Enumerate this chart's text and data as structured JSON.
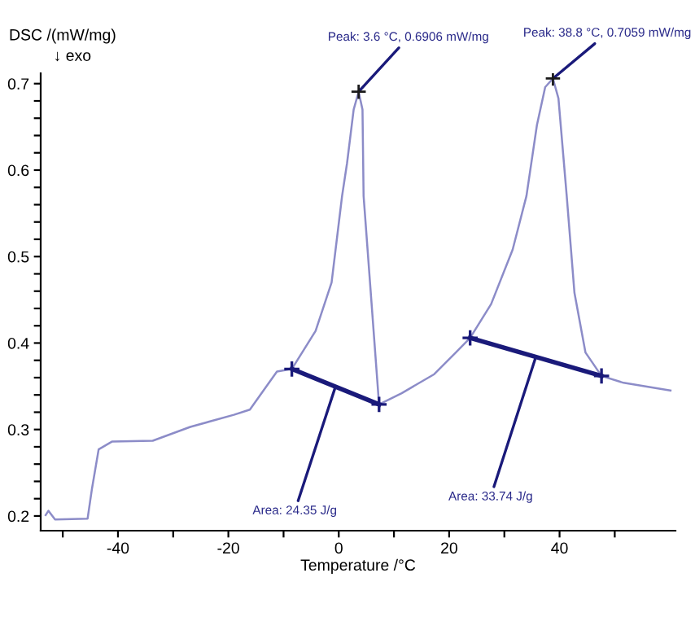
{
  "chart_data": {
    "type": "line",
    "xlabel": "Temperature /°C",
    "ylabel": "DSC /(mW/mg)",
    "xlim": [
      -54,
      61
    ],
    "ylim": [
      0.183,
      0.712
    ],
    "xticks": [
      {
        "value": -50,
        "label": null
      },
      -40,
      {
        "value": -30,
        "label": null
      },
      -20,
      {
        "value": -10,
        "label": null
      },
      0,
      {
        "value": 10,
        "label": null
      },
      20,
      {
        "value": 30,
        "label": null
      },
      40,
      {
        "value": 50,
        "label": null
      }
    ],
    "yticks": [
      0.2,
      {
        "value": 0.22,
        "label": null
      },
      {
        "value": 0.24,
        "label": null
      },
      {
        "value": 0.26,
        "label": null
      },
      {
        "value": 0.28,
        "label": null
      },
      0.3,
      {
        "value": 0.32,
        "label": null
      },
      {
        "value": 0.34,
        "label": null
      },
      {
        "value": 0.36,
        "label": null
      },
      {
        "value": 0.38,
        "label": null
      },
      0.4,
      {
        "value": 0.42,
        "label": null
      },
      {
        "value": 0.44,
        "label": null
      },
      {
        "value": 0.46,
        "label": null
      },
      {
        "value": 0.48,
        "label": null
      },
      0.5,
      {
        "value": 0.52,
        "label": null
      },
      {
        "value": 0.54,
        "label": null
      },
      {
        "value": 0.56,
        "label": null
      },
      {
        "value": 0.58,
        "label": null
      },
      0.6,
      {
        "value": 0.62,
        "label": null
      },
      {
        "value": 0.64,
        "label": null
      },
      {
        "value": 0.66,
        "label": null
      },
      {
        "value": 0.68,
        "label": null
      },
      0.7
    ],
    "grid": false,
    "legend": false,
    "line_style": "solid",
    "series": [
      {
        "color": "#8c8cc8",
        "marker": "none",
        "x": [
          -53.1,
          -52.6,
          -51.4,
          -45.5,
          -44.7,
          -43.5,
          -41.1,
          -33.7,
          -26.9,
          -19.0,
          -16.1,
          -11.2,
          -8.5,
          -4.2,
          -1.3,
          0.6,
          1.5,
          2.7,
          3.6,
          4.3,
          4.5,
          7.3,
          11.4,
          17.3,
          21.2,
          23.8,
          27.6,
          31.5,
          34.0,
          35.9,
          37.4,
          38.8,
          39.8,
          41.3,
          42.7,
          44.7,
          47.6,
          51.6,
          60.1
        ],
        "values": [
          0.201,
          0.206,
          0.196,
          0.197,
          0.232,
          0.277,
          0.286,
          0.287,
          0.303,
          0.317,
          0.323,
          0.367,
          0.37,
          0.414,
          0.47,
          0.57,
          0.608,
          0.67,
          0.6906,
          0.67,
          0.57,
          0.329,
          0.342,
          0.364,
          0.389,
          0.406,
          0.445,
          0.508,
          0.57,
          0.652,
          0.696,
          0.7059,
          0.683,
          0.57,
          0.458,
          0.389,
          0.362,
          0.354,
          0.345
        ]
      },
      {
        "type": "line",
        "color": "#1a1a7a",
        "marker": "cross",
        "x": [
          -8.5,
          7.3
        ],
        "values": [
          0.37,
          0.329
        ]
      },
      {
        "type": "line",
        "color": "#1a1a7a",
        "marker": "cross",
        "x": [
          23.8,
          47.6
        ],
        "values": [
          0.406,
          0.362
        ]
      },
      {
        "type": "scatter",
        "color": "#1a1a1a",
        "marker": "cross",
        "x": [
          3.6,
          38.8
        ],
        "values": [
          0.6906,
          0.7059
        ]
      }
    ],
    "annotations": [
      "↓ exo",
      {
        "text": "Peak: 3.6 °C, 0.6906 mW/mg",
        "x": 3.6,
        "y": 0.6906
      },
      {
        "text": "Peak: 38.8 °C, 0.7059 mW/mg",
        "x": 38.8,
        "y": 0.7059
      },
      {
        "text": "Area: 24.35 J/g",
        "x": -0.6,
        "y": 0.3495
      },
      {
        "text": "Area: 33.74 J/g",
        "x": 35.7,
        "y": 0.384
      }
    ]
  }
}
